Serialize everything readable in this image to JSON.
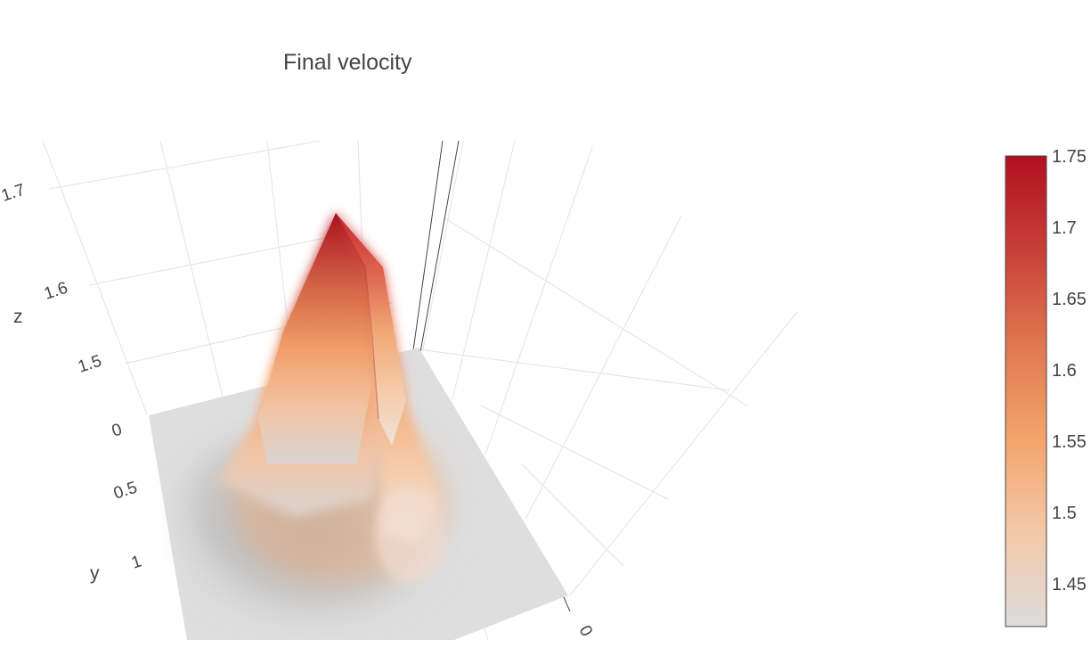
{
  "chart_data": {
    "type": "surface",
    "title": "Final velocity",
    "axes": {
      "z": {
        "label": "z",
        "ticks": [
          "1.5",
          "1.6",
          "1.7"
        ],
        "grid": true
      },
      "y": {
        "label": "y",
        "ticks": [
          "0",
          "0.5",
          "1"
        ],
        "grid": true
      },
      "x": {
        "label": "",
        "ticks": [
          "0"
        ],
        "grid": true
      }
    },
    "colorbar": {
      "ticks": [
        "1.45",
        "1.5",
        "1.55",
        "1.6",
        "1.65",
        "1.7",
        "1.75"
      ],
      "range": [
        1.42,
        1.75
      ],
      "colorscale": [
        "#dcdcdc",
        "#f4c8a8",
        "#f3a46b",
        "#e0774f",
        "#c84038",
        "#b1101f"
      ]
    },
    "surface": {
      "peak_z": 1.75,
      "base_z": 1.42
    }
  }
}
